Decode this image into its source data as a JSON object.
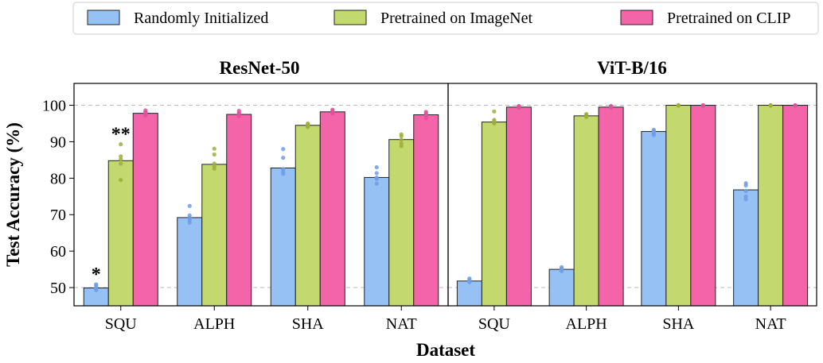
{
  "legend": {
    "entries": [
      {
        "label": "Randomly Initialized",
        "color": "#96C1F5"
      },
      {
        "label": "Pretrained on ImageNet",
        "color": "#C3D86E"
      },
      {
        "label": "Pretrained on CLIP",
        "color": "#F464A9"
      }
    ]
  },
  "colors": {
    "random_dots": "#6E9EE6",
    "imagenet_dots": "#9DAE3C",
    "clip_dots": "#E0529A",
    "reference_line": "#BBBBBB"
  },
  "chart_data": [
    {
      "type": "bar",
      "title": "ResNet-50",
      "categories": [
        "SQU",
        "ALPH",
        "SHA",
        "NAT"
      ],
      "xlabel": "Dataset",
      "ylabel": "Test Accuracy (%)",
      "ylim": [
        45,
        106
      ],
      "yticks": [
        50,
        60,
        70,
        80,
        90,
        100
      ],
      "reference_lines": [
        50,
        100
      ],
      "series": [
        {
          "name": "Randomly Initialized",
          "values": [
            49.9,
            69.2,
            82.8,
            80.2
          ],
          "points": [
            [
              49.3,
              49.7,
              50.1,
              50.6,
              50.9
            ],
            [
              67.8,
              68.5,
              69.1,
              69.8,
              72.4
            ],
            [
              81.2,
              81.8,
              82.5,
              85.6,
              88.0
            ],
            [
              78.5,
              79.8,
              80.2,
              81.4,
              83.0
            ]
          ]
        },
        {
          "name": "Pretrained on ImageNet",
          "values": [
            84.8,
            83.8,
            94.5,
            90.6
          ],
          "points": [
            [
              79.5,
              84.0,
              85.2,
              86.0,
              89.3
            ],
            [
              82.6,
              83.2,
              84.0,
              86.5,
              88.1
            ],
            [
              94.0,
              94.3,
              94.6,
              94.8,
              95.0
            ],
            [
              88.8,
              89.5,
              90.5,
              91.5,
              92.0
            ]
          ]
        },
        {
          "name": "Pretrained on CLIP",
          "values": [
            97.8,
            97.5,
            98.2,
            97.4
          ],
          "points": [
            [
              97.2,
              97.6,
              97.9,
              98.2,
              98.6
            ],
            [
              97.0,
              97.4,
              97.6,
              98.0,
              98.5
            ],
            [
              97.8,
              98.0,
              98.2,
              98.5,
              98.8
            ],
            [
              96.4,
              96.9,
              97.4,
              97.8,
              98.2
            ]
          ]
        }
      ],
      "annotations": [
        {
          "text": "*",
          "category": "SQU",
          "series": 0
        },
        {
          "text": "**",
          "category": "SQU",
          "series": 1
        }
      ]
    },
    {
      "type": "bar",
      "title": "ViT-B/16",
      "categories": [
        "SQU",
        "ALPH",
        "SHA",
        "NAT"
      ],
      "ylim": [
        45,
        106
      ],
      "reference_lines": [
        50,
        100
      ],
      "series": [
        {
          "name": "Randomly Initialized",
          "values": [
            51.8,
            55.0,
            92.8,
            76.8
          ],
          "points": [
            [
              51.5,
              51.8,
              52.0,
              52.2,
              52.5
            ],
            [
              54.5,
              54.8,
              55.0,
              55.2,
              55.6
            ],
            [
              91.8,
              92.3,
              92.7,
              93.0,
              93.3
            ],
            [
              74.2,
              75.0,
              76.5,
              78.0,
              78.6
            ]
          ]
        },
        {
          "name": "Pretrained on ImageNet",
          "values": [
            95.4,
            97.1,
            100.0,
            100.0
          ],
          "points": [
            [
              95.0,
              95.3,
              95.6,
              96.0,
              98.3
            ],
            [
              96.8,
              97.0,
              97.2,
              97.4,
              97.6
            ],
            [
              99.9,
              100.0,
              100.0,
              100.0,
              100.0
            ],
            [
              99.9,
              100.0,
              100.0,
              100.0,
              100.0
            ]
          ]
        },
        {
          "name": "Pretrained on CLIP",
          "values": [
            99.5,
            99.5,
            100.0,
            100.0
          ],
          "points": [
            [
              99.3,
              99.5,
              99.6,
              99.7,
              99.8
            ],
            [
              99.4,
              99.5,
              99.6,
              99.7,
              99.8
            ],
            [
              99.9,
              100.0,
              100.0,
              100.0,
              100.0
            ],
            [
              99.9,
              100.0,
              100.0,
              100.0,
              100.0
            ]
          ]
        }
      ],
      "annotations": []
    }
  ]
}
